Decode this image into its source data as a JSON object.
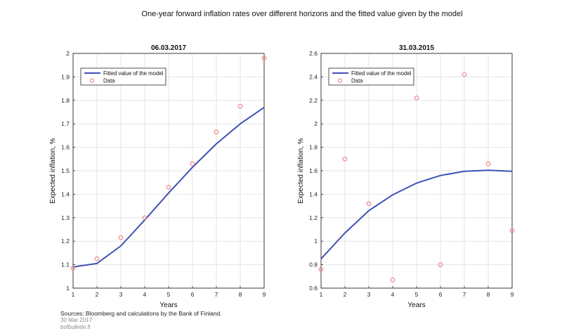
{
  "title": "One-year forward inflation rates over different horizons and the fitted value given by the model",
  "chart_data": [
    {
      "type": "line",
      "title": "06.03.2017",
      "xlabel": "Years",
      "ylabel": "Expected inflation, %",
      "xlim": [
        1,
        9
      ],
      "ylim": [
        1,
        2
      ],
      "xticks": [
        "1",
        "2",
        "3",
        "4",
        "5",
        "6",
        "7",
        "8",
        "9"
      ],
      "yticks": [
        "1",
        "1.1",
        "1.2",
        "1.3",
        "1.4",
        "1.5",
        "1.6",
        "1.7",
        "1.8",
        "1.9",
        "2"
      ],
      "grid": true,
      "legend_position": "top-left",
      "series": [
        {
          "name": "Fitted value of the model",
          "style": "line",
          "color": "#3f51b5",
          "x": [
            1,
            2,
            3,
            4,
            5,
            6,
            7,
            8,
            9
          ],
          "y": [
            1.09,
            1.105,
            1.18,
            1.29,
            1.405,
            1.515,
            1.615,
            1.7,
            1.77
          ]
        },
        {
          "name": "Data",
          "style": "markers",
          "color": "#f08080",
          "x": [
            1,
            2,
            3,
            4,
            5,
            6,
            7,
            8,
            9
          ],
          "y": [
            1.085,
            1.125,
            1.215,
            1.3,
            1.43,
            1.53,
            1.665,
            1.775,
            1.98
          ]
        }
      ]
    },
    {
      "type": "line",
      "title": "31.03.2015",
      "xlabel": "Years",
      "ylabel": "Expected inflation, %",
      "xlim": [
        1,
        9
      ],
      "ylim": [
        0.6,
        2.6
      ],
      "xticks": [
        "1",
        "2",
        "3",
        "4",
        "5",
        "6",
        "7",
        "8",
        "9"
      ],
      "yticks": [
        "0.6",
        "0.8",
        "1",
        "1.2",
        "1.4",
        "1.6",
        "1.8",
        "2",
        "2.2",
        "2.4",
        "2.6"
      ],
      "grid": true,
      "legend_position": "top-left",
      "series": [
        {
          "name": "Fitted value of the model",
          "style": "line",
          "color": "#3f51b5",
          "x": [
            1,
            2,
            3,
            4,
            5,
            6,
            7,
            8,
            9
          ],
          "y": [
            0.85,
            1.07,
            1.26,
            1.395,
            1.495,
            1.56,
            1.595,
            1.605,
            1.595
          ]
        },
        {
          "name": "Data",
          "style": "markers",
          "color": "#f08080",
          "x": [
            1,
            2,
            3,
            4,
            5,
            6,
            7,
            8,
            9
          ],
          "y": [
            0.76,
            1.7,
            1.32,
            0.67,
            2.22,
            0.8,
            2.42,
            1.66,
            1.09
          ]
        }
      ]
    }
  ],
  "footer": {
    "source": "Sources: Bloomberg and calculations by the Bank of Finland.",
    "date": "30 Mar 2017",
    "site": "bofbulletin.fi"
  }
}
